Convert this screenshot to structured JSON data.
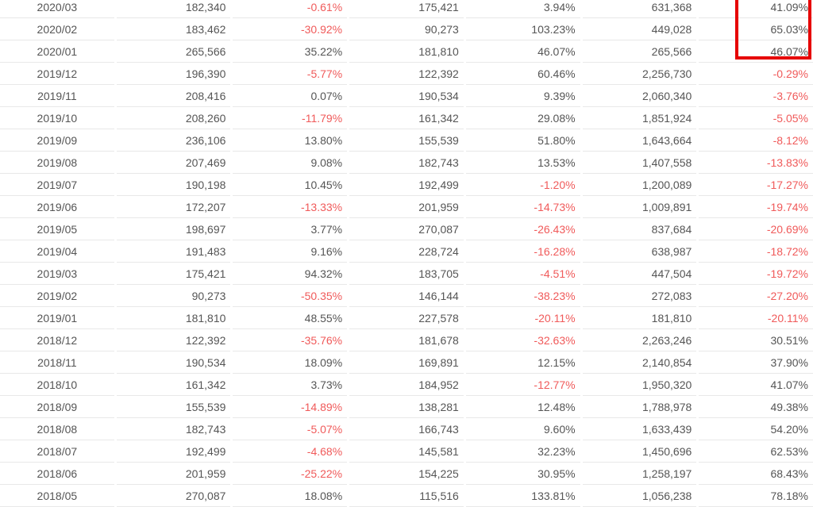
{
  "chart_data": {
    "type": "table",
    "column_headers_visible": false,
    "rows": [
      [
        "2020/03",
        "182,340",
        "-0.61%",
        "175,421",
        "3.94%",
        "631,368",
        "41.09%"
      ],
      [
        "2020/02",
        "183,462",
        "-30.92%",
        "90,273",
        "103.23%",
        "449,028",
        "65.03%"
      ],
      [
        "2020/01",
        "265,566",
        "35.22%",
        "181,810",
        "46.07%",
        "265,566",
        "46.07%"
      ],
      [
        "2019/12",
        "196,390",
        "-5.77%",
        "122,392",
        "60.46%",
        "2,256,730",
        "-0.29%"
      ],
      [
        "2019/11",
        "208,416",
        "0.07%",
        "190,534",
        "9.39%",
        "2,060,340",
        "-3.76%"
      ],
      [
        "2019/10",
        "208,260",
        "-11.79%",
        "161,342",
        "29.08%",
        "1,851,924",
        "-5.05%"
      ],
      [
        "2019/09",
        "236,106",
        "13.80%",
        "155,539",
        "51.80%",
        "1,643,664",
        "-8.12%"
      ],
      [
        "2019/08",
        "207,469",
        "9.08%",
        "182,743",
        "13.53%",
        "1,407,558",
        "-13.83%"
      ],
      [
        "2019/07",
        "190,198",
        "10.45%",
        "192,499",
        "-1.20%",
        "1,200,089",
        "-17.27%"
      ],
      [
        "2019/06",
        "172,207",
        "-13.33%",
        "201,959",
        "-14.73%",
        "1,009,891",
        "-19.74%"
      ],
      [
        "2019/05",
        "198,697",
        "3.77%",
        "270,087",
        "-26.43%",
        "837,684",
        "-20.69%"
      ],
      [
        "2019/04",
        "191,483",
        "9.16%",
        "228,724",
        "-16.28%",
        "638,987",
        "-18.72%"
      ],
      [
        "2019/03",
        "175,421",
        "94.32%",
        "183,705",
        "-4.51%",
        "447,504",
        "-19.72%"
      ],
      [
        "2019/02",
        "90,273",
        "-50.35%",
        "146,144",
        "-38.23%",
        "272,083",
        "-27.20%"
      ],
      [
        "2019/01",
        "181,810",
        "48.55%",
        "227,578",
        "-20.11%",
        "181,810",
        "-20.11%"
      ],
      [
        "2018/12",
        "122,392",
        "-35.76%",
        "181,678",
        "-32.63%",
        "2,263,246",
        "30.51%"
      ],
      [
        "2018/11",
        "190,534",
        "18.09%",
        "169,891",
        "12.15%",
        "2,140,854",
        "37.90%"
      ],
      [
        "2018/10",
        "161,342",
        "3.73%",
        "184,952",
        "-12.77%",
        "1,950,320",
        "41.07%"
      ],
      [
        "2018/09",
        "155,539",
        "-14.89%",
        "138,281",
        "12.48%",
        "1,788,978",
        "49.38%"
      ],
      [
        "2018/08",
        "182,743",
        "-5.07%",
        "166,743",
        "9.60%",
        "1,633,439",
        "54.20%"
      ],
      [
        "2018/07",
        "192,499",
        "-4.68%",
        "145,581",
        "32.23%",
        "1,450,696",
        "62.53%"
      ],
      [
        "2018/06",
        "201,959",
        "-25.22%",
        "154,225",
        "30.95%",
        "1,258,197",
        "68.43%"
      ],
      [
        "2018/05",
        "270,087",
        "18.08%",
        "115,516",
        "133.81%",
        "1,056,238",
        "78.18%"
      ]
    ],
    "highlight": {
      "description": "red rectangle around the last-column values of rows 2020/03, 2020/02, 2020/01",
      "row_indexes": [
        0,
        1,
        2
      ],
      "column_index": 6
    }
  },
  "colors": {
    "text": "#555555",
    "negative": "#f05a5a",
    "separator": "#e8e8e8",
    "highlight_box": "#e60000",
    "background": "#ffffff"
  }
}
